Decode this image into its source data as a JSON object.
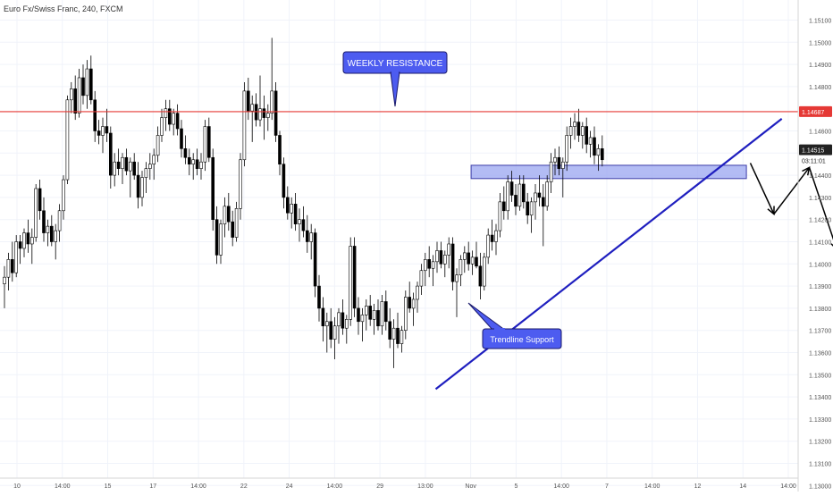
{
  "header": {
    "title": "Euro Fx/Swiss Franc, 240, FXCM"
  },
  "colors": {
    "resistance": "#e53935",
    "trendline": "#1f1fbf",
    "zone_fill": "#9aa6f0",
    "zone_stroke": "#3d3da8",
    "callout_fill": "#4d5cf0",
    "candle": "#000000",
    "arrow": "#000000",
    "badge_dark": "#222222"
  },
  "chart_data": {
    "type": "candlestick",
    "symbol": "Euro Fx/Swiss Franc",
    "interval": "240",
    "source": "FXCM",
    "y_axis": {
      "range": [
        1.13,
        1.152
      ],
      "ticks": [
        "1.15100",
        "1.15000",
        "1.14900",
        "1.14800",
        "1.14600",
        "1.14500",
        "1.14400",
        "1.14300",
        "1.14200",
        "1.14100",
        "1.14000",
        "1.13900",
        "1.13800",
        "1.13700",
        "1.13600",
        "1.13500",
        "1.13400",
        "1.13300",
        "1.13200",
        "1.13100",
        "1.13000"
      ]
    },
    "x_axis": {
      "ticks": [
        "10",
        "14:00",
        "15",
        "17",
        "14:00",
        "22",
        "24",
        "14:00",
        "29",
        "13:00",
        "Nov",
        "5",
        "14:00",
        "7",
        "14:00",
        "12",
        "14",
        "14:00"
      ]
    },
    "price_badges": {
      "resistance": "1.14687",
      "current": "1.14515",
      "countdown": "03:11:01"
    },
    "resistance_level": 1.14687,
    "support_zone": {
      "from": 1.14445,
      "to": 1.14385
    },
    "trendline": {
      "from": {
        "bar": 110,
        "price": 1.13435
      },
      "to": {
        "bar": 198,
        "price": 1.14655
      }
    },
    "projection": [
      {
        "bar": 190,
        "price": 1.14455
      },
      {
        "bar": 196,
        "price": 1.14225
      },
      {
        "bar": 205,
        "price": 1.14435
      },
      {
        "bar": 212,
        "price": 1.14065
      }
    ],
    "annotations": {
      "weekly_resistance": "WEEKLY RESISTANCE",
      "trendline_support": "Trendline Support"
    },
    "candles": [
      [
        1.1391,
        1.1399,
        1.138,
        1.1394
      ],
      [
        1.1394,
        1.1405,
        1.1388,
        1.1402
      ],
      [
        1.1402,
        1.141,
        1.1392,
        1.1396
      ],
      [
        1.1396,
        1.1413,
        1.1394,
        1.141
      ],
      [
        1.141,
        1.1413,
        1.14,
        1.1407
      ],
      [
        1.1407,
        1.1416,
        1.1403,
        1.1414
      ],
      [
        1.1414,
        1.142,
        1.1405,
        1.1409
      ],
      [
        1.1409,
        1.1416,
        1.14,
        1.1412
      ],
      [
        1.1412,
        1.1436,
        1.141,
        1.1434
      ],
      [
        1.1434,
        1.1438,
        1.142,
        1.1424
      ],
      [
        1.1424,
        1.143,
        1.141,
        1.1414
      ],
      [
        1.1414,
        1.142,
        1.1408,
        1.1417
      ],
      [
        1.1417,
        1.1422,
        1.1408,
        1.141
      ],
      [
        1.141,
        1.1418,
        1.1402,
        1.1415
      ],
      [
        1.1415,
        1.1427,
        1.141,
        1.1424
      ],
      [
        1.1424,
        1.144,
        1.142,
        1.1438
      ],
      [
        1.1438,
        1.1476,
        1.1436,
        1.1474
      ],
      [
        1.1474,
        1.1482,
        1.1468,
        1.1479
      ],
      [
        1.1479,
        1.1485,
        1.1465,
        1.1468
      ],
      [
        1.1468,
        1.1488,
        1.1466,
        1.1484
      ],
      [
        1.1484,
        1.149,
        1.1472,
        1.1476
      ],
      [
        1.1476,
        1.1492,
        1.147,
        1.1488
      ],
      [
        1.1488,
        1.1494,
        1.1472,
        1.1474
      ],
      [
        1.1474,
        1.1478,
        1.1455,
        1.146
      ],
      [
        1.146,
        1.1465,
        1.1454,
        1.1458
      ],
      [
        1.1458,
        1.1466,
        1.145,
        1.1462
      ],
      [
        1.1462,
        1.147,
        1.1455,
        1.1459
      ],
      [
        1.1459,
        1.1462,
        1.1434,
        1.144
      ],
      [
        1.144,
        1.145,
        1.1435,
        1.1446
      ],
      [
        1.1446,
        1.1452,
        1.144,
        1.1443
      ],
      [
        1.1443,
        1.145,
        1.1436,
        1.1448
      ],
      [
        1.1448,
        1.1452,
        1.144,
        1.1442
      ],
      [
        1.1442,
        1.1448,
        1.143,
        1.1446
      ],
      [
        1.1446,
        1.145,
        1.1438,
        1.144
      ],
      [
        1.144,
        1.1446,
        1.1425,
        1.143
      ],
      [
        1.143,
        1.1442,
        1.1426,
        1.1439
      ],
      [
        1.1439,
        1.1446,
        1.1432,
        1.1443
      ],
      [
        1.1443,
        1.145,
        1.1438,
        1.1445
      ],
      [
        1.1445,
        1.1452,
        1.1438,
        1.1449
      ],
      [
        1.1449,
        1.1462,
        1.1446,
        1.1458
      ],
      [
        1.1458,
        1.147,
        1.1455,
        1.1466
      ],
      [
        1.1466,
        1.1474,
        1.146,
        1.147
      ],
      [
        1.147,
        1.1474,
        1.146,
        1.1463
      ],
      [
        1.1463,
        1.147,
        1.1458,
        1.1468
      ],
      [
        1.1468,
        1.1472,
        1.1458,
        1.1461
      ],
      [
        1.1461,
        1.1465,
        1.1448,
        1.1452
      ],
      [
        1.1452,
        1.1458,
        1.1445,
        1.1448
      ],
      [
        1.1448,
        1.1452,
        1.144,
        1.1445
      ],
      [
        1.1445,
        1.145,
        1.1438,
        1.1447
      ],
      [
        1.1447,
        1.1452,
        1.144,
        1.1443
      ],
      [
        1.1443,
        1.145,
        1.1438,
        1.1446
      ],
      [
        1.1446,
        1.1465,
        1.1442,
        1.1462
      ],
      [
        1.1462,
        1.1466,
        1.1446,
        1.1448
      ],
      [
        1.1448,
        1.1452,
        1.1415,
        1.142
      ],
      [
        1.142,
        1.1426,
        1.14,
        1.1404
      ],
      [
        1.1404,
        1.142,
        1.14,
        1.1418
      ],
      [
        1.1418,
        1.143,
        1.1412,
        1.1426
      ],
      [
        1.1426,
        1.1432,
        1.1415,
        1.1419
      ],
      [
        1.1419,
        1.1424,
        1.1408,
        1.1412
      ],
      [
        1.1412,
        1.1428,
        1.141,
        1.1425
      ],
      [
        1.1425,
        1.145,
        1.142,
        1.1447
      ],
      [
        1.1447,
        1.1482,
        1.1444,
        1.1478
      ],
      [
        1.1478,
        1.1484,
        1.1465,
        1.1469
      ],
      [
        1.1469,
        1.1476,
        1.1455,
        1.1472
      ],
      [
        1.1472,
        1.1477,
        1.1462,
        1.1465
      ],
      [
        1.1465,
        1.1485,
        1.1462,
        1.147
      ],
      [
        1.147,
        1.1476,
        1.1456,
        1.1466
      ],
      [
        1.1466,
        1.1472,
        1.146,
        1.1468
      ],
      [
        1.1468,
        1.1502,
        1.1465,
        1.1478
      ],
      [
        1.1478,
        1.1482,
        1.1455,
        1.1458
      ],
      [
        1.1458,
        1.146,
        1.144,
        1.1445
      ],
      [
        1.1445,
        1.1448,
        1.1425,
        1.143
      ],
      [
        1.143,
        1.1435,
        1.142,
        1.1423
      ],
      [
        1.1423,
        1.143,
        1.1416,
        1.1427
      ],
      [
        1.1427,
        1.1432,
        1.1415,
        1.1418
      ],
      [
        1.1418,
        1.1425,
        1.141,
        1.142
      ],
      [
        1.142,
        1.1426,
        1.1412,
        1.1415
      ],
      [
        1.1415,
        1.1422,
        1.1405,
        1.141
      ],
      [
        1.141,
        1.1418,
        1.1402,
        1.1414
      ],
      [
        1.1414,
        1.1416,
        1.1385,
        1.139
      ],
      [
        1.139,
        1.1395,
        1.1374,
        1.138
      ],
      [
        1.138,
        1.1385,
        1.1365,
        1.1372
      ],
      [
        1.1372,
        1.1378,
        1.136,
        1.1374
      ],
      [
        1.1374,
        1.138,
        1.1362,
        1.1366
      ],
      [
        1.1366,
        1.1376,
        1.1357,
        1.1372
      ],
      [
        1.1372,
        1.138,
        1.1364,
        1.1378
      ],
      [
        1.1378,
        1.1384,
        1.1368,
        1.1371
      ],
      [
        1.1371,
        1.1377,
        1.1364,
        1.1375
      ],
      [
        1.1375,
        1.1412,
        1.1372,
        1.1408
      ],
      [
        1.1408,
        1.1412,
        1.1376,
        1.138
      ],
      [
        1.138,
        1.1385,
        1.1368,
        1.1374
      ],
      [
        1.1374,
        1.138,
        1.1365,
        1.1377
      ],
      [
        1.1377,
        1.1384,
        1.137,
        1.1381
      ],
      [
        1.1381,
        1.1386,
        1.1372,
        1.1375
      ],
      [
        1.1375,
        1.1382,
        1.1368,
        1.1379
      ],
      [
        1.1379,
        1.1384,
        1.137,
        1.1372
      ],
      [
        1.1372,
        1.1386,
        1.1368,
        1.1383
      ],
      [
        1.1383,
        1.1388,
        1.137,
        1.1374
      ],
      [
        1.1374,
        1.138,
        1.1362,
        1.1366
      ],
      [
        1.1366,
        1.1375,
        1.1353,
        1.1371
      ],
      [
        1.1371,
        1.1378,
        1.1362,
        1.1364
      ],
      [
        1.1364,
        1.1372,
        1.136,
        1.137
      ],
      [
        1.137,
        1.1388,
        1.1366,
        1.1385
      ],
      [
        1.1385,
        1.1392,
        1.1378,
        1.138
      ],
      [
        1.138,
        1.1387,
        1.1372,
        1.1384
      ],
      [
        1.1384,
        1.1392,
        1.1378,
        1.139
      ],
      [
        1.139,
        1.14,
        1.1386,
        1.1397
      ],
      [
        1.1397,
        1.1405,
        1.139,
        1.1402
      ],
      [
        1.1402,
        1.1408,
        1.1394,
        1.1398
      ],
      [
        1.1398,
        1.1404,
        1.139,
        1.1401
      ],
      [
        1.1401,
        1.141,
        1.1396,
        1.1406
      ],
      [
        1.1406,
        1.141,
        1.1398,
        1.14
      ],
      [
        1.14,
        1.1406,
        1.1394,
        1.1404
      ],
      [
        1.1404,
        1.1412,
        1.1398,
        1.1409
      ],
      [
        1.1409,
        1.1412,
        1.1388,
        1.1392
      ],
      [
        1.1392,
        1.1398,
        1.1376,
        1.1395
      ],
      [
        1.1395,
        1.1404,
        1.139,
        1.1402
      ],
      [
        1.1402,
        1.1408,
        1.1396,
        1.1405
      ],
      [
        1.1405,
        1.141,
        1.1397,
        1.14
      ],
      [
        1.14,
        1.1406,
        1.1395,
        1.1403
      ],
      [
        1.1403,
        1.141,
        1.1398,
        1.1399
      ],
      [
        1.1399,
        1.1405,
        1.1384,
        1.139
      ],
      [
        1.139,
        1.1405,
        1.1388,
        1.1403
      ],
      [
        1.1403,
        1.1416,
        1.14,
        1.1413
      ],
      [
        1.1413,
        1.142,
        1.1406,
        1.141
      ],
      [
        1.141,
        1.1418,
        1.1404,
        1.1415
      ],
      [
        1.1415,
        1.1432,
        1.1412,
        1.1428
      ],
      [
        1.1428,
        1.1435,
        1.142,
        1.1424
      ],
      [
        1.1424,
        1.144,
        1.142,
        1.1437
      ],
      [
        1.1437,
        1.1442,
        1.1428,
        1.1431
      ],
      [
        1.1431,
        1.1436,
        1.1422,
        1.1426
      ],
      [
        1.1426,
        1.144,
        1.1424,
        1.1436
      ],
      [
        1.1436,
        1.144,
        1.1425,
        1.1428
      ],
      [
        1.1428,
        1.1432,
        1.1418,
        1.1422
      ],
      [
        1.1422,
        1.143,
        1.1414,
        1.1428
      ],
      [
        1.1428,
        1.1436,
        1.142,
        1.1432
      ],
      [
        1.1432,
        1.144,
        1.1426,
        1.143
      ],
      [
        1.143,
        1.1436,
        1.1408,
        1.1426
      ],
      [
        1.1426,
        1.144,
        1.1424,
        1.1437
      ],
      [
        1.1437,
        1.145,
        1.1432,
        1.1446
      ],
      [
        1.1446,
        1.1452,
        1.144,
        1.1448
      ],
      [
        1.1448,
        1.1453,
        1.144,
        1.1443
      ],
      [
        1.1443,
        1.1448,
        1.143,
        1.1446
      ],
      [
        1.1446,
        1.1462,
        1.1442,
        1.1458
      ],
      [
        1.1458,
        1.1466,
        1.1452,
        1.1462
      ],
      [
        1.1462,
        1.1468,
        1.1456,
        1.1464
      ],
      [
        1.1464,
        1.147,
        1.1455,
        1.1458
      ],
      [
        1.1458,
        1.1464,
        1.1452,
        1.1462
      ],
      [
        1.1462,
        1.1466,
        1.145,
        1.1454
      ],
      [
        1.1454,
        1.146,
        1.1448,
        1.1457
      ],
      [
        1.1457,
        1.1462,
        1.1445,
        1.1449
      ],
      [
        1.1449,
        1.1454,
        1.1442,
        1.1452
      ],
      [
        1.1452,
        1.1458,
        1.1444,
        1.1447
      ]
    ]
  }
}
